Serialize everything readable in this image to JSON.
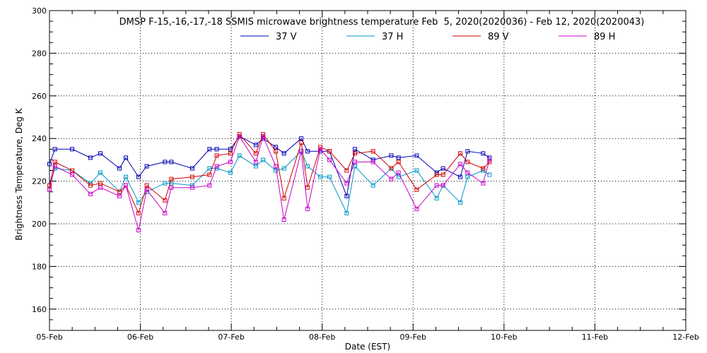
{
  "chart_data": {
    "type": "line",
    "title": "DMSP F-15,-16,-17,-18 SSMIS microwave brightness temperature Feb  5, 2020(2020036) - Feb 12, 2020(2020043)",
    "xlabel": "Date (EST)",
    "ylabel": "Brightness Temperature, Deg K",
    "xlim": [
      0,
      7
    ],
    "ylim": [
      150,
      300
    ],
    "x_ticks": [
      {
        "value": 0,
        "label": "05-Feb"
      },
      {
        "value": 1,
        "label": "06-Feb"
      },
      {
        "value": 2,
        "label": "07-Feb"
      },
      {
        "value": 3,
        "label": "08-Feb"
      },
      {
        "value": 4,
        "label": "09-Feb"
      },
      {
        "value": 5,
        "label": "10-Feb"
      },
      {
        "value": 6,
        "label": "11-Feb"
      },
      {
        "value": 7,
        "label": "12-Feb"
      }
    ],
    "y_ticks": [
      160,
      180,
      200,
      220,
      240,
      260,
      280,
      300
    ],
    "x_unit_note": "days",
    "grid": true,
    "legend_position": "top",
    "series": [
      {
        "name": "37 V",
        "color": "#0000b4",
        "x": [
          0.0,
          0.06,
          0.25,
          0.45,
          0.56,
          0.77,
          0.84,
          0.98,
          1.07,
          1.27,
          1.34,
          1.57,
          1.76,
          1.84,
          1.99,
          2.09,
          2.27,
          2.35,
          2.49,
          2.58,
          2.77,
          2.84,
          2.98,
          3.08,
          3.27,
          3.36,
          3.56,
          3.76,
          3.84,
          4.04,
          4.26,
          4.33,
          4.52,
          4.6,
          4.77,
          4.84
        ],
        "y": [
          228,
          235,
          235,
          231,
          233,
          226,
          231,
          222,
          227,
          229,
          229,
          226,
          235,
          235,
          235,
          241,
          237,
          240,
          236,
          233,
          240,
          234,
          234,
          234,
          213,
          235,
          230,
          232,
          231,
          232,
          224,
          226,
          222,
          234,
          233,
          231
        ]
      },
      {
        "name": "37 H",
        "color": "#0096c8",
        "x": [
          0.0,
          0.06,
          0.25,
          0.45,
          0.56,
          0.77,
          0.84,
          0.98,
          1.07,
          1.27,
          1.34,
          1.57,
          1.76,
          1.84,
          1.99,
          2.09,
          2.27,
          2.35,
          2.49,
          2.58,
          2.77,
          2.84,
          2.98,
          3.08,
          3.27,
          3.36,
          3.56,
          3.76,
          3.84,
          4.04,
          4.26,
          4.33,
          4.52,
          4.6,
          4.77,
          4.84
        ],
        "y": [
          218,
          226,
          225,
          219,
          224,
          215,
          222,
          210,
          215,
          219,
          219,
          218,
          226,
          226,
          224,
          232,
          227,
          230,
          225,
          226,
          234,
          227,
          222,
          222,
          205,
          227,
          218,
          226,
          222,
          225,
          212,
          218,
          210,
          222,
          225,
          223
        ]
      },
      {
        "name": "89 V",
        "color": "#d20000",
        "x": [
          0.0,
          0.06,
          0.25,
          0.45,
          0.56,
          0.77,
          0.84,
          0.98,
          1.07,
          1.27,
          1.34,
          1.57,
          1.76,
          1.84,
          1.99,
          2.09,
          2.27,
          2.35,
          2.49,
          2.58,
          2.77,
          2.84,
          2.98,
          3.08,
          3.27,
          3.36,
          3.56,
          3.76,
          3.84,
          4.04,
          4.26,
          4.33,
          4.52,
          4.6,
          4.77,
          4.84
        ],
        "y": [
          218,
          229,
          225,
          218,
          219,
          215,
          218,
          205,
          218,
          211,
          221,
          222,
          223,
          232,
          233,
          242,
          233,
          242,
          234,
          212,
          238,
          217,
          236,
          234,
          225,
          233,
          234,
          226,
          229,
          216,
          223,
          223,
          233,
          229,
          226,
          229
        ]
      },
      {
        "name": "89 H",
        "color": "#c800c8",
        "x": [
          0.0,
          0.06,
          0.25,
          0.45,
          0.56,
          0.77,
          0.84,
          0.98,
          1.07,
          1.27,
          1.34,
          1.57,
          1.76,
          1.84,
          1.99,
          2.09,
          2.27,
          2.35,
          2.49,
          2.58,
          2.77,
          2.84,
          2.98,
          3.08,
          3.27,
          3.36,
          3.56,
          3.76,
          3.84,
          4.04,
          4.26,
          4.33,
          4.52,
          4.6,
          4.77,
          4.84
        ],
        "y": [
          216,
          227,
          223,
          214,
          217,
          213,
          218,
          197,
          216,
          205,
          217,
          217,
          218,
          227,
          229,
          241,
          229,
          241,
          227,
          202,
          234,
          207,
          235,
          230,
          219,
          229,
          229,
          221,
          224,
          207,
          218,
          218,
          228,
          224,
          219,
          230
        ]
      }
    ]
  }
}
